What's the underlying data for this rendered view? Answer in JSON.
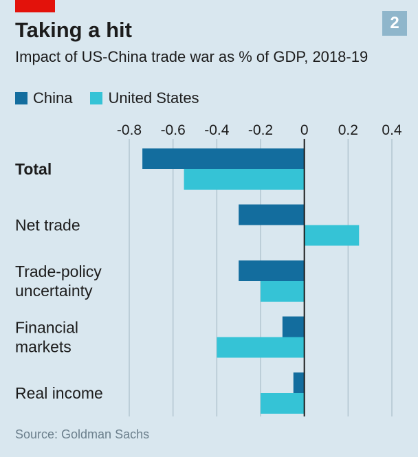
{
  "badge": "2",
  "colors": {
    "china": "#136d9e",
    "us": "#35c3d6",
    "grid": "#b3c6d1",
    "zero": "#1c1c1c",
    "text": "#1c1c1c"
  },
  "chart_data": {
    "type": "bar",
    "orientation": "horizontal",
    "title": "Taking a hit",
    "subtitle": "Impact of US-China trade war as % of GDP, 2018-19",
    "source": "Source: Goldman Sachs",
    "categories": [
      "Total",
      "Net trade",
      "Trade-policy uncertainty",
      "Financial markets",
      "Real income"
    ],
    "category_lines": [
      [
        "Total"
      ],
      [
        "Net trade"
      ],
      [
        "Trade-policy",
        "uncertainty"
      ],
      [
        "Financial",
        "markets"
      ],
      [
        "Real income"
      ]
    ],
    "category_bold": [
      true,
      false,
      false,
      false,
      false
    ],
    "series": [
      {
        "name": "China",
        "color": "#136d9e",
        "values": [
          -0.74,
          -0.3,
          -0.3,
          -0.1,
          -0.05
        ]
      },
      {
        "name": "United States",
        "color": "#35c3d6",
        "values": [
          -0.55,
          0.25,
          -0.2,
          -0.4,
          -0.2
        ]
      }
    ],
    "xlim": [
      -0.8,
      0.4
    ],
    "xticks": [
      -0.8,
      -0.6,
      -0.4,
      -0.2,
      0,
      0.2,
      0.4
    ],
    "xtick_labels": [
      "-0.8",
      "-0.6",
      "-0.4",
      "-0.2",
      "0",
      "0.2",
      "0.4"
    ],
    "axis_position": "top",
    "grid": true,
    "legend_position": "top-left"
  }
}
